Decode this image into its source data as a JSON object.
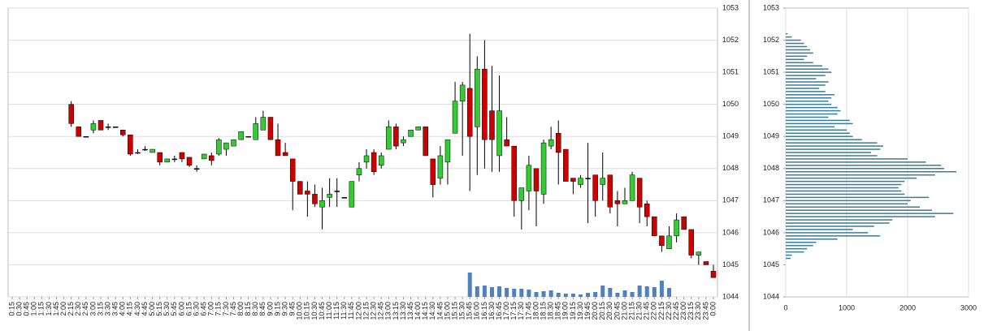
{
  "chart_data": [
    {
      "type": "candlestick",
      "categories": [
        "0:15",
        "0:30",
        "0:45",
        "1:00",
        "1:15",
        "1:30",
        "1:45",
        "2:00",
        "2:15",
        "2:30",
        "2:45",
        "3:00",
        "3:15",
        "3:30",
        "3:45",
        "4:00",
        "4:15",
        "4:30",
        "4:45",
        "5:00",
        "5:15",
        "5:30",
        "5:45",
        "6:00",
        "6:15",
        "6:30",
        "6:45",
        "7:00",
        "7:15",
        "7:30",
        "7:45",
        "8:00",
        "8:15",
        "8:30",
        "8:45",
        "9:00",
        "9:15",
        "9:30",
        "9:45",
        "10:00",
        "10:15",
        "10:30",
        "10:45",
        "11:00",
        "11:15",
        "11:30",
        "11:45",
        "12:00",
        "12:15",
        "12:30",
        "12:45",
        "13:00",
        "13:15",
        "13:30",
        "13:45",
        "14:00",
        "14:15",
        "14:30",
        "14:45",
        "15:00",
        "15:15",
        "15:30",
        "15:45",
        "16:00",
        "16:15",
        "16:30",
        "16:45",
        "17:00",
        "17:15",
        "17:30",
        "17:45",
        "18:00",
        "18:15",
        "18:30",
        "18:45",
        "19:00",
        "19:15",
        "19:30",
        "19:45",
        "20:00",
        "20:15",
        "20:30",
        "20:45",
        "21:00",
        "21:15",
        "21:30",
        "21:45",
        "22:00",
        "22:15",
        "22:30",
        "22:45",
        "23:00",
        "23:15",
        "23:30",
        "23:45",
        "0:00"
      ],
      "open": [
        null,
        null,
        null,
        null,
        null,
        null,
        null,
        null,
        1050,
        1049.3,
        1049,
        1049.2,
        1049.5,
        1049.3,
        1049.3,
        1049.2,
        1049.05,
        1048.5,
        1048.6,
        1048.5,
        1048.5,
        1048.2,
        1048.3,
        1048.5,
        1048.35,
        1048,
        1048.3,
        1048.4,
        1048.45,
        1048.6,
        1048.7,
        1048.9,
        1049,
        1048.9,
        1049.2,
        1049.6,
        1048.9,
        1048.5,
        1048.3,
        1047.6,
        1047.3,
        1047.2,
        1046.8,
        1047.1,
        1047.3,
        1047.1,
        1046.8,
        1047.8,
        1048.2,
        1048.5,
        1048.1,
        1048.6,
        1049.3,
        1048.8,
        1049,
        1049.2,
        1049.3,
        1048.3,
        1047.7,
        1048.2,
        1049.1,
        1050.1,
        1050.5,
        1049.3,
        1051.1,
        1049.8,
        1048.4,
        1048.9,
        1048.7,
        1047,
        1047.3,
        1048,
        1047.2,
        1048.7,
        1049.1,
        1048.6,
        1047.7,
        1047.5,
        1047.7,
        1047.8,
        1047.5,
        1047.8,
        1047,
        1046.9,
        1047,
        1047.7,
        1046.9,
        1046.5,
        1045.9,
        1045.5,
        1045.9,
        1046.5,
        1046.1,
        1045.3,
        1045.1,
        1044.8
      ],
      "high": [
        null,
        null,
        null,
        null,
        null,
        null,
        null,
        null,
        1050.1,
        1049.3,
        1049,
        1049.5,
        1049.5,
        1049.4,
        1049.3,
        1049.2,
        1049.05,
        1048.6,
        1048.7,
        1048.6,
        1048.5,
        1048.3,
        1048.4,
        1048.5,
        1048.35,
        1048.1,
        1048.45,
        1048.5,
        1048.95,
        1048.8,
        1048.9,
        1049.15,
        1049,
        1049.6,
        1049.8,
        1049.6,
        1049.4,
        1048.8,
        1048.3,
        1047.6,
        1047.6,
        1047.5,
        1047.4,
        1047.7,
        1047.7,
        1047.1,
        1047.6,
        1048.2,
        1048.6,
        1048.6,
        1048.5,
        1049.5,
        1049.4,
        1049,
        1049.2,
        1049.3,
        1049.3,
        1048.3,
        1048.7,
        1048.9,
        1050.7,
        1050.7,
        1052.2,
        1051.5,
        1052,
        1051.2,
        1050.9,
        1049.6,
        1048.7,
        1047.4,
        1048.4,
        1048,
        1048.9,
        1049.3,
        1049.5,
        1048.6,
        1047.7,
        1047.8,
        1048.8,
        1047.8,
        1048.5,
        1047.8,
        1047.3,
        1047.4,
        1047.9,
        1047.7,
        1047,
        1046.5,
        1045.9,
        1046.2,
        1046.6,
        1046.5,
        1046.1,
        1045.4,
        1045.1,
        1045
      ],
      "low": [
        null,
        null,
        null,
        null,
        null,
        null,
        null,
        null,
        1049.3,
        1049,
        1049,
        1049.1,
        1049.2,
        1049.2,
        1049.3,
        1049,
        1048.4,
        1048.45,
        1048.55,
        1048.5,
        1048.1,
        1048.2,
        1048.2,
        1048.2,
        1048.05,
        1047.9,
        1048.3,
        1048.1,
        1048.4,
        1048.4,
        1048.7,
        1048.9,
        1049,
        1048.9,
        1049.2,
        1048.9,
        1048.4,
        1048.4,
        1046.7,
        1047.2,
        1046.5,
        1046.8,
        1046.1,
        1046.8,
        1046.8,
        1047.1,
        1046.8,
        1047.6,
        1048,
        1047.8,
        1048,
        1048.6,
        1048.6,
        1048.7,
        1049,
        1049.2,
        1048.4,
        1047.1,
        1047.5,
        1047.5,
        1049.1,
        1048.4,
        1047.3,
        1047.8,
        1048,
        1047.9,
        1047.9,
        1048.7,
        1046.5,
        1046.1,
        1046.7,
        1046.2,
        1046.9,
        1048.6,
        1047.5,
        1047.6,
        1047.2,
        1047.4,
        1046.3,
        1046.5,
        1047,
        1046.6,
        1046.2,
        1046.9,
        1047,
        1046.3,
        1046.2,
        1045.9,
        1045.4,
        1045.5,
        1045.7,
        1046.1,
        1045.2,
        1045,
        1045,
        1044.6
      ],
      "close": [
        null,
        null,
        null,
        null,
        null,
        null,
        null,
        null,
        1049.4,
        1049,
        1049,
        1049.4,
        1049.2,
        1049.3,
        1049.3,
        1049.05,
        1048.45,
        1048.5,
        1048.6,
        1048.6,
        1048.2,
        1048.3,
        1048.3,
        1048.3,
        1048.1,
        1048,
        1048.45,
        1048.25,
        1048.9,
        1048.8,
        1048.9,
        1049.15,
        1049,
        1049.4,
        1049.6,
        1048.9,
        1048.4,
        1048.4,
        1047.6,
        1047.2,
        1047.2,
        1046.9,
        1047,
        1047.2,
        1047.3,
        1047.1,
        1047.6,
        1048,
        1048.4,
        1047.9,
        1048.4,
        1049.3,
        1048.7,
        1048.9,
        1049.2,
        1049.3,
        1048.4,
        1047.5,
        1048.4,
        1048.9,
        1050.1,
        1050.6,
        1049,
        1051.1,
        1048.9,
        1048.9,
        1049.8,
        1048.7,
        1047,
        1047.4,
        1048.1,
        1047.3,
        1048.8,
        1048.9,
        1048.5,
        1047.6,
        1047.6,
        1047.7,
        1047.7,
        1047,
        1047.7,
        1046.8,
        1046.9,
        1047,
        1047.8,
        1046.8,
        1046.5,
        1045.9,
        1045.6,
        1045.9,
        1046.4,
        1046.1,
        1045.3,
        1045.4,
        1045,
        1044.6
      ],
      "volume": [
        null,
        null,
        null,
        null,
        null,
        null,
        null,
        null,
        null,
        null,
        null,
        null,
        null,
        null,
        null,
        null,
        null,
        null,
        null,
        null,
        null,
        null,
        null,
        null,
        null,
        null,
        null,
        null,
        null,
        null,
        null,
        null,
        null,
        null,
        null,
        null,
        null,
        null,
        null,
        null,
        null,
        null,
        null,
        null,
        null,
        null,
        null,
        null,
        null,
        null,
        null,
        null,
        null,
        null,
        null,
        null,
        null,
        null,
        null,
        null,
        null,
        null,
        30,
        13,
        14,
        12,
        13,
        11,
        10,
        10,
        9,
        6,
        7,
        8,
        5,
        4,
        4,
        3,
        5,
        6,
        14,
        11,
        5,
        8,
        6,
        14,
        13,
        12,
        20,
        11,
        null,
        null,
        null,
        null,
        null,
        null
      ],
      "up_color": "#33cc33",
      "down_color": "#cc0000",
      "volume_color": "#4f81bd",
      "ylim": [
        1044,
        1053
      ],
      "yticks": [
        1044,
        1045,
        1046,
        1047,
        1048,
        1049,
        1050,
        1051,
        1052,
        1053
      ],
      "grid": true
    },
    {
      "type": "barh",
      "y": [
        1052.2,
        1052.1,
        1052,
        1051.9,
        1051.8,
        1051.7,
        1051.6,
        1051.5,
        1051.4,
        1051.3,
        1051.2,
        1051.1,
        1051,
        1050.9,
        1050.8,
        1050.7,
        1050.6,
        1050.5,
        1050.4,
        1050.3,
        1050.2,
        1050.1,
        1050,
        1049.9,
        1049.8,
        1049.7,
        1049.6,
        1049.5,
        1049.4,
        1049.3,
        1049.2,
        1049.1,
        1049,
        1048.9,
        1048.8,
        1048.7,
        1048.6,
        1048.5,
        1048.4,
        1048.3,
        1048.2,
        1048.1,
        1048,
        1047.9,
        1047.8,
        1047.7,
        1047.6,
        1047.5,
        1047.4,
        1047.3,
        1047.2,
        1047.1,
        1047,
        1046.9,
        1046.8,
        1046.7,
        1046.6,
        1046.5,
        1046.4,
        1046.3,
        1046.2,
        1046.1,
        1046,
        1045.9,
        1045.8,
        1045.7,
        1045.6,
        1045.5,
        1045.4,
        1045.3,
        1045.2
      ],
      "values": [
        30,
        100,
        250,
        300,
        350,
        400,
        450,
        350,
        300,
        450,
        600,
        700,
        750,
        650,
        500,
        700,
        650,
        550,
        650,
        800,
        750,
        700,
        750,
        850,
        900,
        850,
        700,
        1050,
        1100,
        800,
        1000,
        1050,
        1100,
        1250,
        1500,
        1600,
        1550,
        1400,
        1500,
        2000,
        2300,
        2550,
        2600,
        2800,
        2450,
        2150,
        1950,
        1900,
        1850,
        1900,
        1950,
        2350,
        2050,
        2000,
        2200,
        2400,
        2750,
        2450,
        1750,
        1700,
        1450,
        1100,
        1350,
        1550,
        850,
        500,
        450,
        350,
        300,
        100,
        80
      ],
      "color": "#3a7a9a",
      "ylim": [
        1044,
        1053
      ],
      "yticks": [
        1044,
        1045,
        1046,
        1047,
        1048,
        1049,
        1050,
        1051,
        1052,
        1053
      ],
      "xlim": [
        0,
        3000
      ],
      "xticks": [
        0,
        1000,
        2000,
        3000
      ],
      "grid": true
    }
  ]
}
